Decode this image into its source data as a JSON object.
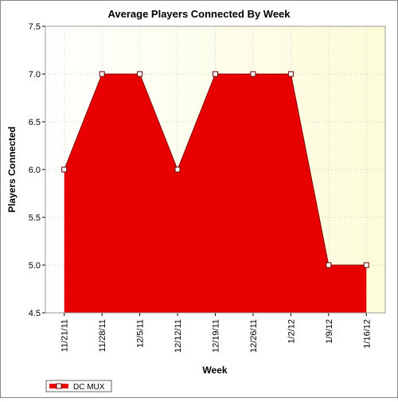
{
  "chart_data": {
    "type": "area",
    "title": "Average Players Connected By Week",
    "x_label": "Week",
    "y_label": "Players Connected",
    "categories": [
      "11/21/11",
      "11/28/11",
      "12/5/11",
      "12/12/11",
      "12/19/11",
      "12/26/11",
      "1/2/12",
      "1/9/12",
      "1/16/12"
    ],
    "series": [
      {
        "name": "DC MUX",
        "color": "#e80000",
        "values": [
          6,
          7,
          7,
          6,
          7,
          7,
          7,
          5,
          5
        ]
      }
    ],
    "ylim": [
      4.5,
      7.5
    ],
    "yticks": [
      4.5,
      {
        "value": 5,
        "label": "5.0"
      },
      5.5,
      {
        "value": 6,
        "label": "6.0"
      },
      6.5,
      {
        "value": 7,
        "label": "7.0"
      },
      7.5
    ],
    "grid": true,
    "legend": "bottom-left"
  }
}
